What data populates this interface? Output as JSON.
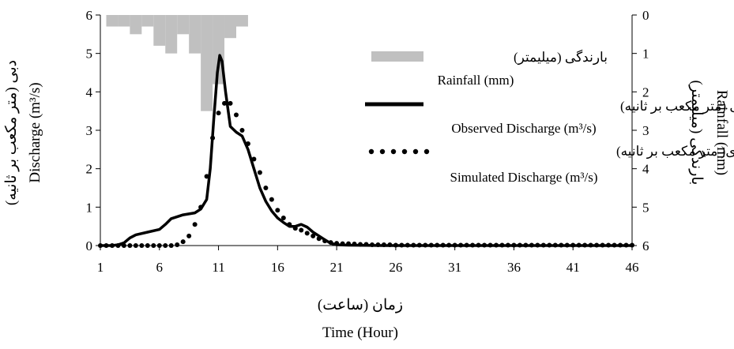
{
  "chart_data": {
    "type": "line",
    "x_axis": {
      "label_fa": "زمان (ساعت)",
      "label_en": "Time (Hour)",
      "min": 1,
      "max": 46,
      "ticks": [
        "1",
        "6",
        "11",
        "16",
        "21",
        "26",
        "31",
        "36",
        "41",
        "46"
      ]
    },
    "y_left": {
      "label_fa": "دبی (متر مکعب بر ثانیه)",
      "label_en": "Discharge (m³/s)",
      "min": 0,
      "max": 6,
      "ticks": [
        "0",
        "1",
        "2",
        "3",
        "4",
        "5",
        "6"
      ]
    },
    "y_right": {
      "label_fa": "بارندگی (میلیمتر)",
      "label_en": "Rainfall (mm)",
      "min": 0,
      "max": 6,
      "inverted": true,
      "ticks": [
        "0",
        "1",
        "2",
        "3",
        "4",
        "5",
        "6"
      ]
    },
    "series": [
      {
        "name": "Rainfall (mm)",
        "name_fa": "بارندگی (میلیمتر)",
        "kind": "bar",
        "axis": "right",
        "color": "#c0c0c0",
        "x": [
          2,
          3,
          4,
          5,
          6,
          7,
          8,
          9,
          10,
          11,
          12,
          13
        ],
        "values": [
          0.3,
          0.3,
          0.5,
          0.3,
          0.8,
          1.0,
          0.5,
          1.0,
          2.5,
          1.8,
          0.6,
          0.3
        ]
      },
      {
        "name": "Observed Discharge (m³/s)",
        "name_fa": "دبی مشاهداتی (متر مکعب بر ثانیه)",
        "kind": "line",
        "axis": "left",
        "color": "#000000",
        "x": [
          1,
          2,
          2.5,
          3,
          3.5,
          4,
          5,
          6,
          6.5,
          7,
          8,
          9,
          9.5,
          10,
          10.3,
          10.6,
          10.9,
          11.1,
          11.3,
          11.6,
          12,
          12.5,
          13,
          13.5,
          14,
          14.5,
          15,
          15.5,
          16,
          16.5,
          17,
          17.5,
          18,
          18.5,
          19,
          19.5,
          20,
          20.5,
          21,
          22,
          25,
          30,
          35,
          40,
          46
        ],
        "values": [
          0.0,
          0.0,
          0.02,
          0.07,
          0.2,
          0.28,
          0.35,
          0.42,
          0.55,
          0.7,
          0.8,
          0.85,
          0.95,
          1.2,
          2.0,
          3.3,
          4.5,
          4.95,
          4.8,
          4.0,
          3.1,
          2.95,
          2.85,
          2.5,
          2.0,
          1.5,
          1.15,
          0.9,
          0.72,
          0.6,
          0.5,
          0.5,
          0.55,
          0.48,
          0.35,
          0.25,
          0.15,
          0.06,
          0.02,
          0.01,
          0.0,
          0.0,
          0.0,
          0.0,
          0.0
        ]
      },
      {
        "name": "Simulated Discharge (m³/s)",
        "name_fa": "دبی شبیه سازی( متر مکعب بر ثانیه)",
        "kind": "scatter",
        "axis": "left",
        "color": "#000000",
        "x": [
          1,
          1.5,
          2,
          2.5,
          3,
          3.5,
          4,
          4.5,
          5,
          5.5,
          6,
          6.5,
          7,
          7.5,
          8,
          8.5,
          9,
          9.5,
          10,
          10.5,
          11,
          11.5,
          12,
          12.5,
          13,
          13.5,
          14,
          14.5,
          15,
          15.5,
          16,
          16.5,
          17,
          17.5,
          18,
          18.5,
          19,
          19.5,
          20,
          20.5,
          21,
          21.5,
          22,
          22.5,
          23,
          23.5,
          24,
          24.5,
          25,
          25.5,
          26,
          26.5,
          27,
          27.5,
          28,
          28.5,
          29,
          29.5,
          30,
          30.5,
          31,
          31.5,
          32,
          32.5,
          33,
          33.5,
          34,
          34.5,
          35,
          35.5,
          36,
          36.5,
          37,
          37.5,
          38,
          38.5,
          39,
          39.5,
          40,
          40.5,
          41,
          41.5,
          42,
          42.5,
          43,
          43.5,
          44,
          44.5,
          45,
          45.5,
          46
        ],
        "values": [
          0.0,
          0.0,
          0.0,
          0.0,
          0.0,
          0.0,
          0.0,
          0.0,
          0.0,
          0.0,
          0.0,
          0.0,
          0.0,
          0.02,
          0.1,
          0.25,
          0.55,
          1.0,
          1.8,
          2.8,
          3.45,
          3.7,
          3.7,
          3.4,
          3.0,
          2.65,
          2.25,
          1.9,
          1.5,
          1.2,
          0.92,
          0.72,
          0.55,
          0.45,
          0.4,
          0.32,
          0.25,
          0.18,
          0.12,
          0.08,
          0.06,
          0.05,
          0.05,
          0.04,
          0.03,
          0.03,
          0.02,
          0.02,
          0.02,
          0.02,
          0.01,
          0.01,
          0.01,
          0.01,
          0.01,
          0.01,
          0.01,
          0.01,
          0.01,
          0.01,
          0.01,
          0.01,
          0.01,
          0.01,
          0.01,
          0.01,
          0.01,
          0.01,
          0.01,
          0.01,
          0.01,
          0.01,
          0.01,
          0.01,
          0.01,
          0.01,
          0.01,
          0.01,
          0.01,
          0.01,
          0.01,
          0.01,
          0.01,
          0.01,
          0.01,
          0.01,
          0.01,
          0.01,
          0.01,
          0.01,
          0.01
        ]
      }
    ]
  }
}
